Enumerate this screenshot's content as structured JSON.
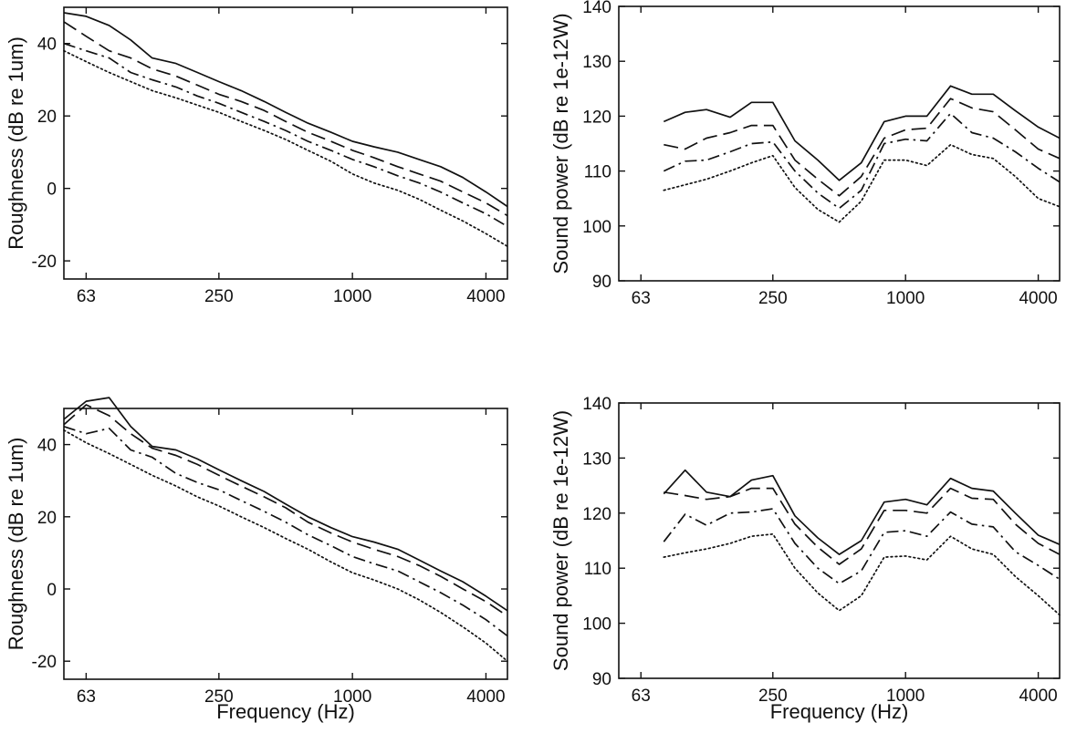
{
  "chart_data": [
    {
      "type": "line",
      "ylabel": "Roughness (dB re 1um)",
      "xlabel": "",
      "xscale": "log",
      "xticks": [
        63,
        250,
        1000,
        4000
      ],
      "xlim": [
        50,
        5000
      ],
      "yticks": [
        -20,
        0,
        20,
        40
      ],
      "ylim": [
        -25,
        50
      ],
      "line_styles": [
        "solid",
        "dashed",
        "dashdot",
        "dotted"
      ],
      "x": [
        50,
        63,
        80,
        100,
        125,
        160,
        200,
        250,
        315,
        400,
        500,
        630,
        800,
        1000,
        1250,
        1600,
        2000,
        2500,
        3150,
        4000,
        5000
      ],
      "series": [
        {
          "values": [
            48.5,
            47.5,
            45,
            41,
            36,
            34.5,
            32,
            29.5,
            27,
            24,
            21,
            18,
            15.5,
            13,
            11.5,
            10,
            8,
            6,
            3,
            -1,
            -5
          ]
        },
        {
          "values": [
            46,
            42,
            38,
            36,
            33,
            31,
            28.5,
            26,
            24,
            21.5,
            18.5,
            15.5,
            13,
            10.5,
            8.5,
            6,
            4,
            2,
            -1,
            -4,
            -7.5
          ]
        },
        {
          "values": [
            40,
            38,
            36,
            32,
            30,
            28,
            25.5,
            23.5,
            21,
            18.5,
            16,
            13,
            10.5,
            8,
            6,
            3.5,
            1.5,
            -1,
            -4,
            -7,
            -10.5
          ]
        },
        {
          "values": [
            38,
            35,
            32,
            29.5,
            27,
            25,
            23,
            21,
            18.5,
            16,
            13.5,
            10.5,
            7.5,
            4,
            1.5,
            -0.5,
            -3,
            -6,
            -9,
            -12.5,
            -16
          ]
        }
      ]
    },
    {
      "type": "line",
      "ylabel": "Sound power (dB re 1e-12W)",
      "xlabel": "",
      "xscale": "log",
      "xticks": [
        63,
        250,
        1000,
        4000
      ],
      "xlim": [
        50,
        5000
      ],
      "yticks": [
        90,
        100,
        110,
        120,
        130,
        140
      ],
      "ylim": [
        90,
        140
      ],
      "line_styles": [
        "solid",
        "dashed",
        "dashdot",
        "dotted"
      ],
      "x": [
        80,
        100,
        125,
        160,
        200,
        250,
        315,
        400,
        500,
        630,
        800,
        1000,
        1250,
        1600,
        2000,
        2500,
        3150,
        4000,
        5000
      ],
      "series": [
        {
          "values": [
            119,
            120.7,
            121.2,
            119.8,
            122.5,
            122.5,
            115.5,
            112,
            108.3,
            111.5,
            119,
            120,
            120,
            125.5,
            124,
            124,
            121,
            118,
            116
          ]
        },
        {
          "values": [
            114.8,
            114,
            116,
            117,
            118.3,
            118.3,
            112,
            108.5,
            105.5,
            109,
            116,
            117.5,
            117.8,
            123.2,
            121.5,
            120.8,
            117.5,
            114,
            112.3
          ]
        },
        {
          "values": [
            110,
            111.8,
            112,
            113.5,
            115,
            115.3,
            110,
            106,
            103.2,
            106.5,
            115,
            115.8,
            115.5,
            120.5,
            117,
            116,
            113.5,
            110.5,
            108
          ]
        },
        {
          "values": [
            106.5,
            107.5,
            108.5,
            110,
            111.5,
            112.8,
            107,
            103,
            100.7,
            104.5,
            112,
            112,
            111,
            114.8,
            113,
            112.3,
            109,
            105,
            103.5
          ]
        }
      ]
    },
    {
      "type": "line",
      "ylabel": "Roughness (dB re 1um)",
      "xlabel": "Frequency (Hz)",
      "xscale": "log",
      "xticks": [
        63,
        250,
        1000,
        4000
      ],
      "xlim": [
        50,
        5000
      ],
      "yticks": [
        -20,
        0,
        20,
        40
      ],
      "ylim": [
        -25,
        50
      ],
      "line_styles": [
        "solid",
        "dashed",
        "dashdot",
        "dotted"
      ],
      "x": [
        50,
        63,
        80,
        100,
        125,
        160,
        200,
        250,
        315,
        400,
        500,
        630,
        800,
        1000,
        1250,
        1600,
        2000,
        2500,
        3150,
        4000,
        5000
      ],
      "series": [
        {
          "values": [
            47,
            52,
            53,
            45,
            39.5,
            38.5,
            36,
            33,
            30,
            27,
            23.5,
            20,
            17,
            14.5,
            13,
            11,
            8,
            5,
            2,
            -2,
            -6
          ]
        },
        {
          "values": [
            45.5,
            51,
            48,
            43,
            39,
            37,
            34.5,
            31.5,
            28.5,
            25.5,
            22.5,
            18.5,
            15.5,
            13,
            11,
            9,
            6.5,
            3.5,
            0,
            -3.5,
            -7.5
          ]
        },
        {
          "values": [
            45,
            43,
            44.5,
            38.5,
            36.5,
            32,
            29.5,
            27.5,
            24.5,
            21.5,
            18.5,
            15,
            12,
            9,
            7,
            5,
            2,
            -1,
            -4.5,
            -8.5,
            -13
          ]
        },
        {
          "values": [
            44,
            40.5,
            37.5,
            34.5,
            31.5,
            28.5,
            25.5,
            23,
            20,
            17,
            14,
            11,
            7.5,
            4.5,
            2.5,
            0,
            -3,
            -6.5,
            -10.5,
            -15,
            -20
          ]
        }
      ]
    },
    {
      "type": "line",
      "ylabel": "Sound power (dB re 1e-12W)",
      "xlabel": "Frequency (Hz)",
      "xscale": "log",
      "xticks": [
        63,
        250,
        1000,
        4000
      ],
      "xlim": [
        50,
        5000
      ],
      "yticks": [
        90,
        100,
        110,
        120,
        130,
        140
      ],
      "ylim": [
        90,
        140
      ],
      "line_styles": [
        "solid",
        "dashed",
        "dashdot",
        "dotted"
      ],
      "x": [
        80,
        100,
        125,
        160,
        200,
        250,
        315,
        400,
        500,
        630,
        800,
        1000,
        1250,
        1600,
        2000,
        2500,
        3150,
        4000,
        5000
      ],
      "series": [
        {
          "values": [
            123.5,
            127.8,
            123.8,
            123,
            126,
            126.8,
            119.5,
            115.5,
            112.5,
            115,
            122,
            122.5,
            121.5,
            126.3,
            124.5,
            124,
            120,
            116,
            114.3
          ]
        },
        {
          "values": [
            123.8,
            123.2,
            122.5,
            123,
            124.5,
            124.5,
            118,
            113.8,
            110.7,
            113.5,
            120.5,
            120.5,
            120,
            124.5,
            122.7,
            122.5,
            118,
            114.5,
            112.5
          ]
        },
        {
          "values": [
            114.8,
            119.8,
            117.8,
            120,
            120.2,
            120.8,
            114.5,
            110,
            107.2,
            109.5,
            116.5,
            116.8,
            115.8,
            120.2,
            118,
            117.5,
            113,
            110.5,
            108
          ]
        },
        {
          "values": [
            112,
            112.8,
            113.5,
            114.5,
            115.8,
            116.2,
            110,
            105.5,
            102.3,
            105,
            112,
            112.2,
            111.5,
            115.8,
            113.5,
            112.5,
            108.5,
            105,
            101.5
          ]
        }
      ]
    }
  ]
}
